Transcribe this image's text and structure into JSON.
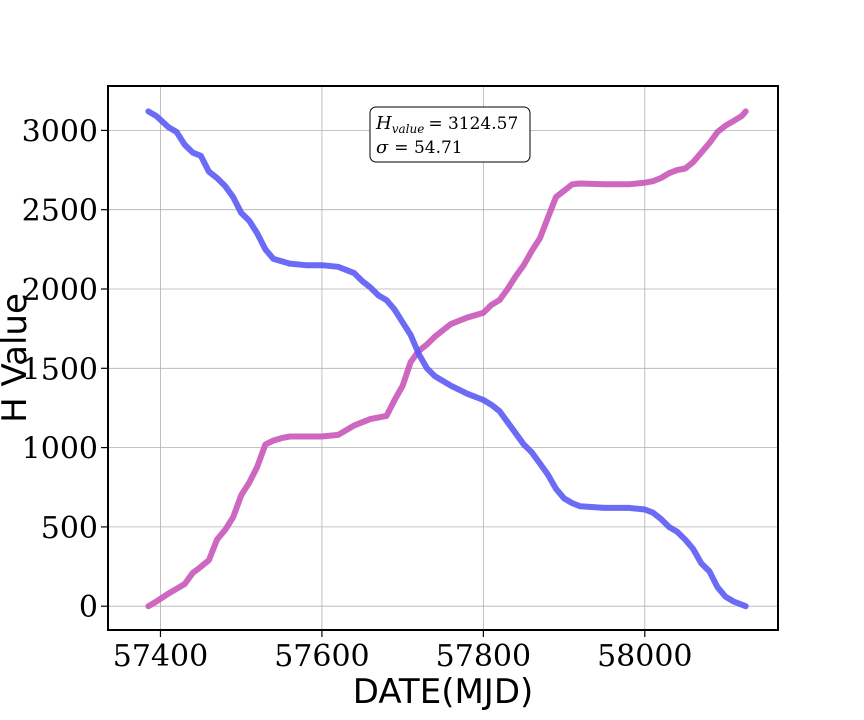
{
  "chart_data": {
    "type": "line",
    "xlabel": "DATE(MJD)",
    "ylabel": "H Value",
    "xlim": [
      57335,
      58165
    ],
    "ylim": [
      -150,
      3280
    ],
    "xticks": [
      57400,
      57600,
      57800,
      58000
    ],
    "yticks": [
      0,
      500,
      1000,
      1500,
      2000,
      2500,
      3000
    ],
    "grid": true,
    "annotation": {
      "h_symbol": "H",
      "h_subscript": "value",
      "h_value": "= 3124.57",
      "sigma_symbol": "σ",
      "sigma_value": "= 54.71"
    },
    "series": [
      {
        "color": "#c957b8",
        "x": [
          57385,
          57395,
          57410,
          57420,
          57430,
          57440,
          57448,
          57460,
          57470,
          57480,
          57490,
          57500,
          57510,
          57520,
          57530,
          57540,
          57550,
          57560,
          57580,
          57600,
          57620,
          57640,
          57660,
          57680,
          57690,
          57700,
          57710,
          57720,
          57730,
          57740,
          57750,
          57760,
          57780,
          57800,
          57810,
          57820,
          57830,
          57840,
          57850,
          57860,
          57870,
          57880,
          57890,
          57900,
          57910,
          57920,
          57950,
          57980,
          58000,
          58010,
          58020,
          58030,
          58040,
          58050,
          58060,
          58070,
          58080,
          58090,
          58100,
          58110,
          58120,
          58125
        ],
        "y": [
          0,
          30,
          80,
          110,
          140,
          210,
          240,
          290,
          420,
          480,
          560,
          700,
          780,
          880,
          1020,
          1045,
          1060,
          1070,
          1070,
          1070,
          1080,
          1140,
          1180,
          1200,
          1300,
          1390,
          1540,
          1610,
          1650,
          1700,
          1740,
          1780,
          1820,
          1850,
          1900,
          1930,
          2000,
          2080,
          2150,
          2240,
          2320,
          2450,
          2580,
          2620,
          2660,
          2665,
          2660,
          2660,
          2670,
          2680,
          2700,
          2730,
          2750,
          2760,
          2800,
          2860,
          2920,
          2990,
          3030,
          3060,
          3090,
          3120
        ]
      },
      {
        "color": "#5b5bf5",
        "x": [
          57385,
          57395,
          57410,
          57420,
          57430,
          57440,
          57450,
          57460,
          57470,
          57480,
          57490,
          57500,
          57510,
          57520,
          57530,
          57540,
          57550,
          57560,
          57580,
          57600,
          57620,
          57640,
          57650,
          57660,
          57670,
          57680,
          57690,
          57700,
          57710,
          57720,
          57730,
          57740,
          57760,
          57780,
          57800,
          57810,
          57820,
          57830,
          57840,
          57850,
          57860,
          57870,
          57880,
          57890,
          57900,
          57910,
          57920,
          57950,
          57980,
          58000,
          58010,
          58020,
          58030,
          58040,
          58050,
          58060,
          58070,
          58080,
          58090,
          58100,
          58110,
          58125
        ],
        "y": [
          3120,
          3090,
          3020,
          2990,
          2910,
          2860,
          2840,
          2740,
          2700,
          2650,
          2580,
          2480,
          2430,
          2350,
          2250,
          2190,
          2175,
          2160,
          2150,
          2150,
          2140,
          2100,
          2050,
          2010,
          1960,
          1930,
          1870,
          1790,
          1710,
          1590,
          1500,
          1450,
          1390,
          1340,
          1300,
          1270,
          1230,
          1160,
          1090,
          1020,
          970,
          900,
          830,
          740,
          680,
          650,
          630,
          620,
          620,
          610,
          590,
          550,
          500,
          470,
          420,
          360,
          270,
          220,
          120,
          60,
          30,
          0
        ]
      }
    ]
  }
}
